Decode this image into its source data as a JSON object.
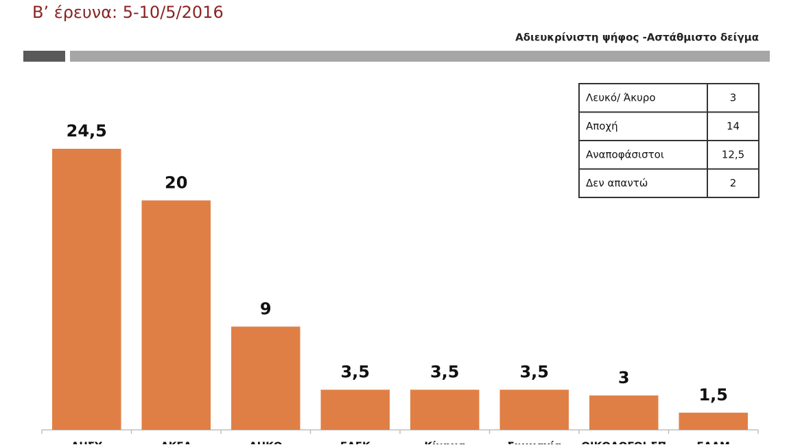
{
  "chart_data": {
    "type": "bar",
    "title": "Β’ έρευνα: 5-10/5/2016",
    "subtitle": "Αδιευκρίνιστη ψήφος -Αστάθμιστο δείγμα",
    "categories": [
      "ΔΗΣΥ",
      "ΑΚΕΛ",
      "ΔΗΚΟ",
      "ΕΔΕΚ",
      "Κίνημα",
      "Συμμαχία",
      "ΟΙΚΟΛΟΓΟΙ-ΣΠ",
      "ΕΛΑΜ"
    ],
    "values": [
      24.5,
      20,
      9,
      3.5,
      3.5,
      3.5,
      3,
      1.5
    ],
    "value_labels": [
      "24,5",
      "20",
      "9",
      "3,5",
      "3,5",
      "3,5",
      "3",
      "1,5"
    ],
    "color": "#e07f45",
    "ylim": [
      0,
      30
    ],
    "table": {
      "rows": [
        [
          "Λευκό/ Άκυρο",
          "3"
        ],
        [
          "Αποχή",
          "14"
        ],
        [
          "Αναποφάσιστοι",
          "12,5"
        ],
        [
          "Δεν απαντώ",
          "2"
        ]
      ]
    }
  }
}
